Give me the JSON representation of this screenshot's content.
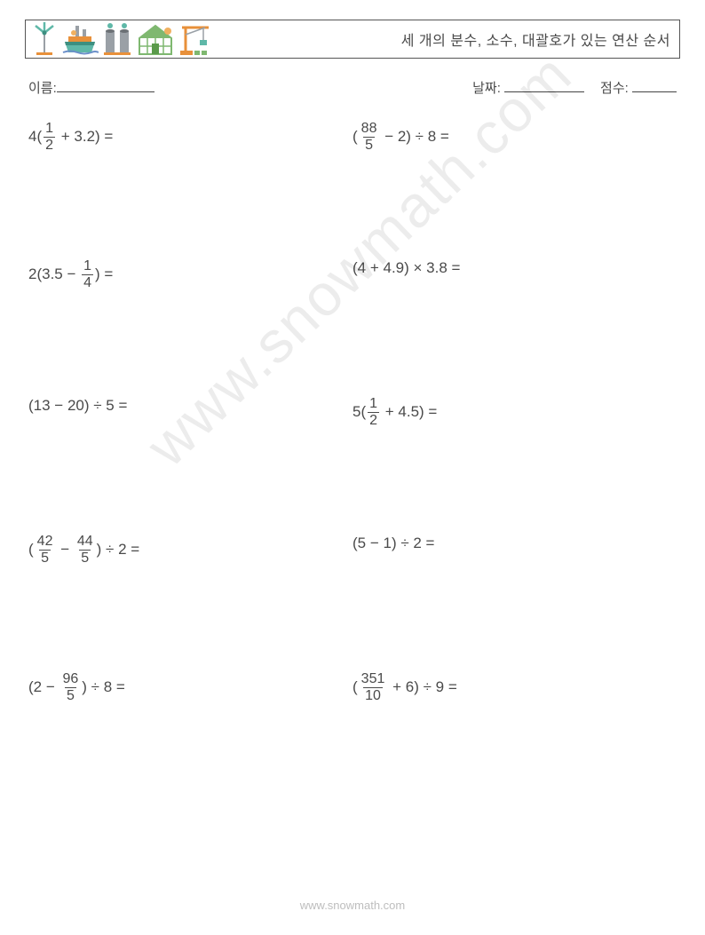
{
  "header": {
    "title": "세 개의 분수, 소수, 대괄호가 있는 연산 순서"
  },
  "info": {
    "name_label": "이름:",
    "name_blank_width": 110,
    "date_label": "날짜:",
    "date_blank_width": 90,
    "score_label": "점수:",
    "score_blank_width": 50
  },
  "problems": [
    {
      "left": {
        "segments": [
          {
            "t": "text",
            "v": "4("
          },
          {
            "t": "frac",
            "n": "1",
            "d": "2"
          },
          {
            "t": "text",
            "v": " + 3.2) ="
          }
        ]
      },
      "right": {
        "segments": [
          {
            "t": "text",
            "v": "("
          },
          {
            "t": "frac",
            "n": "88",
            "d": "5"
          },
          {
            "t": "text",
            "v": " − 2) ÷ 8 ="
          }
        ]
      }
    },
    {
      "left": {
        "segments": [
          {
            "t": "text",
            "v": "2(3.5 − "
          },
          {
            "t": "frac",
            "n": "1",
            "d": "4"
          },
          {
            "t": "text",
            "v": ") ="
          }
        ]
      },
      "right": {
        "segments": [
          {
            "t": "text",
            "v": "(4 + 4.9) × 3.8 ="
          }
        ]
      }
    },
    {
      "left": {
        "segments": [
          {
            "t": "text",
            "v": "(13 − 20) ÷ 5 ="
          }
        ]
      },
      "right": {
        "segments": [
          {
            "t": "text",
            "v": "5("
          },
          {
            "t": "frac",
            "n": "1",
            "d": "2"
          },
          {
            "t": "text",
            "v": " + 4.5) ="
          }
        ]
      }
    },
    {
      "left": {
        "segments": [
          {
            "t": "text",
            "v": "("
          },
          {
            "t": "frac",
            "n": "42",
            "d": "5"
          },
          {
            "t": "text",
            "v": " − "
          },
          {
            "t": "frac",
            "n": "44",
            "d": "5"
          },
          {
            "t": "text",
            "v": ") ÷ 2 ="
          }
        ]
      },
      "right": {
        "segments": [
          {
            "t": "text",
            "v": "(5 − 1) ÷ 2 ="
          }
        ]
      }
    },
    {
      "left": {
        "segments": [
          {
            "t": "text",
            "v": "(2 − "
          },
          {
            "t": "frac",
            "n": "96",
            "d": "5"
          },
          {
            "t": "text",
            "v": ") ÷ 8 ="
          }
        ]
      },
      "right": {
        "segments": [
          {
            "t": "text",
            "v": "("
          },
          {
            "t": "frac",
            "n": "351",
            "d": "10"
          },
          {
            "t": "text",
            "v": " + 6) ÷ 9 ="
          }
        ]
      }
    }
  ],
  "watermark": "www.snowmath.com",
  "footer": "www.snowmath.com",
  "icons": {
    "colors": {
      "teal": "#5fb8a8",
      "teal_dark": "#3d8f80",
      "orange": "#e8903a",
      "orange_light": "#f0b060",
      "grey": "#9aa0a6",
      "grey_dark": "#6b7075",
      "green": "#7fb870",
      "green_dark": "#5a9a4a",
      "blue": "#6b8fc9"
    }
  }
}
